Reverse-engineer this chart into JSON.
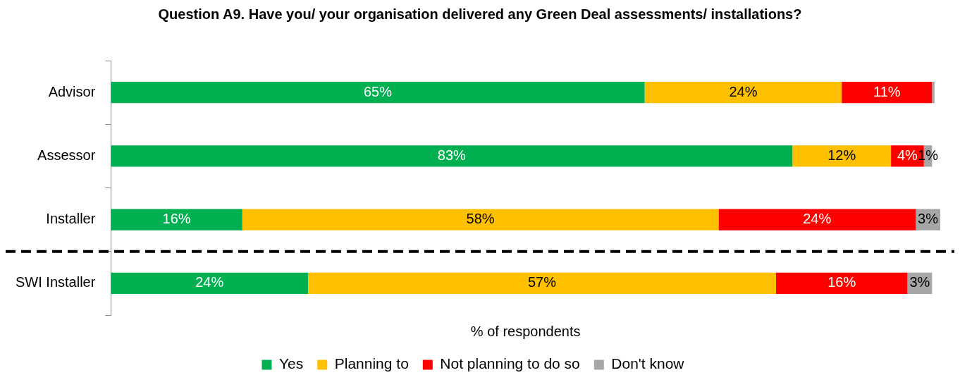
{
  "chart_data": {
    "type": "bar",
    "orientation": "horizontal",
    "stacked": true,
    "title": "Question A9. Have you/ your organisation delivered any Green Deal assessments/ installations?",
    "xlabel": "% of respondents",
    "categories": [
      "Advisor",
      "Assessor",
      "Installer",
      "SWI Installer"
    ],
    "series": [
      {
        "name": "Yes",
        "color": "#00b050",
        "values": [
          65,
          83,
          16,
          24
        ],
        "value_labels": [
          "65%",
          "83%",
          "16%",
          "24%"
        ]
      },
      {
        "name": "Planning to",
        "color": "#ffc000",
        "values": [
          24,
          12,
          58,
          57
        ],
        "value_labels": [
          "24%",
          "12%",
          "58%",
          "57%"
        ]
      },
      {
        "name": "Not planning to do so",
        "color": "#ff0000",
        "values": [
          11,
          4,
          24,
          16
        ],
        "value_labels": [
          "11%",
          "4%",
          "24%",
          "16%"
        ]
      },
      {
        "name": "Don't know",
        "color": "#a6a6a6",
        "values": [
          0.3,
          1,
          3,
          3
        ],
        "value_labels": [
          null,
          "1%",
          "3%",
          "3%"
        ]
      }
    ],
    "legend": "bottom",
    "marker": "square",
    "grid": false
  }
}
